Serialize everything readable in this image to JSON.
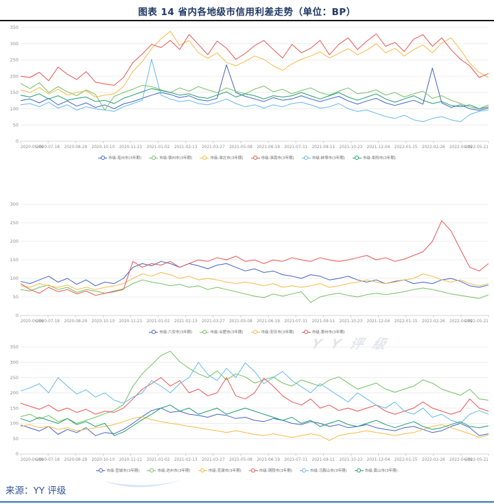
{
  "title": "图表 14 省内各地级市信用利差走势（单位：BP）",
  "source": "来源：YY 评级",
  "watermark_text": "YY评级",
  "accent_colors": {
    "title": "#1f3864",
    "source": "#2f5496",
    "bottom_rule": "#2e74b5"
  },
  "x_tick_labels": [
    "2020-06-06",
    "2020-07-18",
    "2020-08-29",
    "2020-10-10",
    "2020-11-21",
    "2021-01-02",
    "2021-02-13",
    "2021-03-27",
    "2021-05-08",
    "2021-06-19",
    "2021-07-31",
    "2021-09-11",
    "2021-10-23",
    "2021-12-04",
    "2022-01-15",
    "2022-02-26",
    "2022-04-09",
    "2022-05-21"
  ],
  "chart_data": [
    {
      "type": "line",
      "title": "",
      "xlabel": "",
      "ylabel": "",
      "ylim": [
        0,
        350
      ],
      "yticks": [
        0,
        50,
        100,
        150,
        200,
        250,
        300,
        350
      ],
      "grid": true,
      "legend_position": "bottom",
      "x_tick_labels": [
        "2020-06-06",
        "2020-07-18",
        "2020-08-29",
        "2020-10-10",
        "2020-11-21",
        "2021-01-02",
        "2021-02-13",
        "2021-03-27",
        "2021-05-08",
        "2021-06-19",
        "2021-07-31",
        "2021-09-11",
        "2021-10-23",
        "2021-12-04",
        "2022-01-15",
        "2022-02-26",
        "2022-04-09",
        "2022-05-21"
      ],
      "series": [
        {
          "name": "市级:亳州市(3年期)",
          "color": "#4061c2",
          "values": [
            125,
            130,
            118,
            132,
            112,
            124,
            108,
            118,
            104,
            112,
            100,
            115,
            122,
            132,
            142,
            150,
            144,
            134,
            140,
            128,
            124,
            132,
            235,
            150,
            138,
            130,
            122,
            134,
            126,
            130,
            140,
            130,
            122,
            130,
            138,
            124,
            114,
            124,
            132,
            118,
            110,
            118,
            126,
            114,
            225,
            118,
            104,
            112,
            100,
            95,
            102
          ]
        },
        {
          "name": "市级:宿州市(3年期)",
          "color": "#71bf5e",
          "values": [
            178,
            162,
            180,
            150,
            168,
            152,
            140,
            158,
            144,
            96,
            138,
            150,
            160,
            172,
            168,
            158,
            150,
            164,
            154,
            168,
            158,
            150,
            164,
            154,
            146,
            160,
            170,
            152,
            160,
            146,
            156,
            164,
            150,
            142,
            154,
            164,
            146,
            150,
            158,
            142,
            150,
            136,
            146,
            154,
            132,
            140,
            126,
            116,
            106,
            100,
            112
          ]
        },
        {
          "name": "市级:淮北市(3年期)",
          "color": "#f5b942",
          "values": [
            158,
            150,
            165,
            145,
            160,
            142,
            150,
            155,
            136,
            142,
            146,
            168,
            215,
            245,
            285,
            315,
            338,
            295,
            310,
            272,
            255,
            272,
            242,
            232,
            246,
            262,
            252,
            232,
            218,
            238,
            252,
            262,
            275,
            256,
            270,
            285,
            266,
            280,
            300,
            272,
            286,
            262,
            282,
            296,
            272,
            302,
            318,
            282,
            240,
            212,
            196
          ]
        },
        {
          "name": "市级:淮南市(3年期)",
          "color": "#e8534f",
          "values": [
            200,
            196,
            212,
            186,
            228,
            206,
            190,
            214,
            182,
            176,
            172,
            196,
            242,
            268,
            298,
            288,
            310,
            282,
            328,
            298,
            266,
            308,
            286,
            252,
            270,
            294,
            310,
            282,
            256,
            298,
            272,
            286,
            310,
            266,
            298,
            318,
            282,
            308,
            330,
            292,
            304,
            276,
            314,
            328,
            292,
            318,
            282,
            252,
            232,
            196,
            208
          ]
        },
        {
          "name": "市级:蚌埠市(3年期)",
          "color": "#63b8e8",
          "values": [
            112,
            116,
            106,
            120,
            102,
            112,
            96,
            106,
            100,
            96,
            92,
            106,
            116,
            126,
            252,
            142,
            130,
            122,
            126,
            116,
            112,
            120,
            130,
            116,
            106,
            112,
            102,
            112,
            106,
            116,
            120,
            112,
            102,
            106,
            116,
            100,
            92,
            96,
            86,
            76,
            70,
            80,
            66,
            60,
            70,
            76,
            66,
            60,
            82,
            92,
            96
          ]
        },
        {
          "name": "市级:阜阳市(3年期)",
          "color": "#1e9a6e",
          "values": [
            142,
            136,
            146,
            130,
            140,
            126,
            132,
            136,
            122,
            126,
            116,
            132,
            142,
            152,
            162,
            156,
            150,
            142,
            146,
            136,
            132,
            142,
            152,
            136,
            146,
            140,
            130,
            140,
            136,
            140,
            150,
            140,
            130,
            140,
            150,
            136,
            126,
            136,
            146,
            130,
            120,
            130,
            140,
            126,
            116,
            122,
            110,
            106,
            112,
            100,
            106
          ]
        }
      ]
    },
    {
      "type": "line",
      "title": "",
      "xlabel": "",
      "ylabel": "",
      "ylim": [
        0,
        300
      ],
      "yticks": [
        0,
        50,
        100,
        150,
        200,
        250,
        300
      ],
      "grid": true,
      "legend_position": "bottom",
      "x_tick_labels": [
        "2020-06-06",
        "2020-07-18",
        "2020-08-29",
        "2020-10-10",
        "2020-11-21",
        "2021-01-02",
        "2021-02-13",
        "2021-03-27",
        "2021-05-08",
        "2021-06-19",
        "2021-07-31",
        "2021-09-11",
        "2021-10-23",
        "2021-12-04",
        "2022-01-15",
        "2022-02-26",
        "2022-04-09",
        "2022-05-21"
      ],
      "series": [
        {
          "name": "市级:六安市(3年期)",
          "color": "#4061c2",
          "values": [
            92,
            86,
            96,
            106,
            90,
            100,
            84,
            96,
            80,
            90,
            86,
            100,
            130,
            140,
            134,
            146,
            140,
            130,
            140,
            134,
            126,
            136,
            140,
            130,
            120,
            126,
            116,
            120,
            110,
            106,
            100,
            110,
            106,
            96,
            100,
            106,
            96,
            90,
            96,
            86,
            92,
            96,
            86,
            90,
            86,
            96,
            100,
            92,
            80,
            76,
            82
          ]
        },
        {
          "name": "市级:合肥市(3年期)",
          "color": "#71bf5e",
          "values": [
            70,
            66,
            76,
            82,
            70,
            76,
            62,
            70,
            66,
            60,
            66,
            72,
            86,
            96,
            90,
            86,
            80,
            84,
            76,
            80,
            70,
            76,
            70,
            64,
            58,
            52,
            48,
            58,
            52,
            58,
            64,
            35,
            50,
            56,
            60,
            54,
            50,
            56,
            60,
            56,
            60,
            64,
            70,
            74,
            70,
            64,
            58,
            54,
            50,
            46,
            56
          ]
        },
        {
          "name": "市级:安庆市(3年期)",
          "color": "#f5b942",
          "values": [
            80,
            76,
            86,
            80,
            76,
            82,
            70,
            76,
            70,
            76,
            80,
            86,
            100,
            112,
            106,
            116,
            110,
            100,
            106,
            96,
            100,
            96,
            90,
            86,
            90,
            86,
            80,
            86,
            76,
            80,
            76,
            80,
            86,
            76,
            80,
            86,
            90,
            96,
            90,
            86,
            90,
            96,
            100,
            112,
            106,
            96,
            90,
            96,
            86,
            80,
            86
          ]
        },
        {
          "name": "市级:滁州市(3年期)",
          "color": "#e8534f",
          "values": [
            86,
            70,
            60,
            76,
            64,
            70,
            58,
            66,
            54,
            60,
            64,
            70,
            146,
            130,
            140,
            136,
            146,
            130,
            140,
            150,
            146,
            156,
            150,
            160,
            146,
            150,
            140,
            150,
            146,
            156,
            150,
            146,
            156,
            150,
            146,
            150,
            156,
            162,
            150,
            156,
            146,
            152,
            162,
            172,
            200,
            256,
            228,
            178,
            130,
            120,
            140
          ]
        }
      ]
    },
    {
      "type": "line",
      "title": "",
      "xlabel": "",
      "ylabel": "",
      "ylim": [
        0,
        350
      ],
      "yticks": [
        0,
        50,
        100,
        150,
        200,
        250,
        300,
        350
      ],
      "grid": true,
      "legend_position": "bottom",
      "x_tick_labels": [
        "2020-06-06",
        "2020-07-18",
        "2020-08-29",
        "2020-10-10",
        "2020-11-21",
        "2021-01-02",
        "2021-02-13",
        "2021-03-27",
        "2021-05-08",
        "2021-06-19",
        "2021-07-31",
        "2021-09-11",
        "2021-10-23",
        "2021-12-04",
        "2022-01-15",
        "2022-02-26",
        "2022-04-09",
        "2022-05-21"
      ],
      "series": [
        {
          "name": "市级:宣城市(3年期)",
          "color": "#4061c2",
          "values": [
            95,
            85,
            75,
            90,
            64,
            80,
            70,
            86,
            60,
            70,
            66,
            80,
            100,
            122,
            142,
            150,
            136,
            140,
            130,
            126,
            120,
            130,
            126,
            116,
            120,
            110,
            106,
            116,
            110,
            100,
            96,
            106,
            100,
            90,
            96,
            86,
            90,
            96,
            86,
            80,
            76,
            86,
            90,
            80,
            70,
            76,
            90,
            100,
            86,
            60,
            66
          ]
        },
        {
          "name": "市级:池州市(3年期)",
          "color": "#71bf5e",
          "values": [
            122,
            130,
            114,
            126,
            106,
            116,
            100,
            110,
            120,
            132,
            142,
            162,
            222,
            262,
            292,
            322,
            336,
            302,
            280,
            262,
            250,
            272,
            242,
            262,
            252,
            232,
            242,
            252,
            232,
            222,
            242,
            232,
            222,
            242,
            252,
            232,
            212,
            222,
            232,
            212,
            202,
            212,
            222,
            242,
            232,
            212,
            202,
            192,
            212,
            180,
            176
          ]
        },
        {
          "name": "市级:芜湖市(3年期)",
          "color": "#f5b942",
          "values": [
            90,
            96,
            86,
            90,
            80,
            86,
            76,
            80,
            86,
            90,
            96,
            106,
            116,
            122,
            112,
            106,
            100,
            96,
            90,
            86,
            80,
            76,
            70,
            76,
            70,
            64,
            60,
            66,
            60,
            54,
            60,
            66,
            60,
            44,
            60,
            66,
            70,
            76,
            70,
            66,
            60,
            66,
            70,
            80,
            90,
            96,
            86,
            76,
            66,
            54,
            62
          ]
        },
        {
          "name": "市级:铜陵市(3年期)",
          "color": "#e8534f",
          "values": [
            166,
            156,
            146,
            160,
            140,
            150,
            136,
            146,
            130,
            140,
            136,
            150,
            180,
            212,
            230,
            250,
            222,
            240,
            200,
            212,
            190,
            200,
            250,
            190,
            180,
            200,
            248,
            222,
            190,
            170,
            160,
            180,
            150,
            160,
            142,
            150,
            140,
            150,
            160,
            140,
            130,
            140,
            150,
            170,
            150,
            140,
            130,
            140,
            180,
            150,
            140
          ]
        },
        {
          "name": "市级:马鞍山市(3年期)",
          "color": "#63b8e8",
          "values": [
            206,
            216,
            230,
            200,
            250,
            222,
            196,
            210,
            186,
            200,
            176,
            166,
            186,
            200,
            240,
            222,
            200,
            230,
            250,
            300,
            260,
            240,
            280,
            250,
            298,
            270,
            230,
            250,
            270,
            240,
            220,
            200,
            230,
            210,
            190,
            170,
            200,
            180,
            160,
            150,
            170,
            140,
            130,
            150,
            120,
            130,
            110,
            100,
            130,
            142,
            130
          ]
        },
        {
          "name": "市级:黄山市(3年期)",
          "color": "#1e9a6e",
          "values": [
            116,
            106,
            120,
            110,
            100,
            116,
            96,
            106,
            90,
            100,
            60,
            72,
            92,
            112,
            130,
            150,
            160,
            140,
            150,
            130,
            140,
            150,
            130,
            140,
            150,
            140,
            130,
            120,
            110,
            120,
            100,
            110,
            90,
            100,
            110,
            96,
            90,
            100,
            110,
            96,
            86,
            96,
            106,
            90,
            80,
            86,
            96,
            106,
            90,
            86,
            92
          ]
        }
      ]
    }
  ]
}
